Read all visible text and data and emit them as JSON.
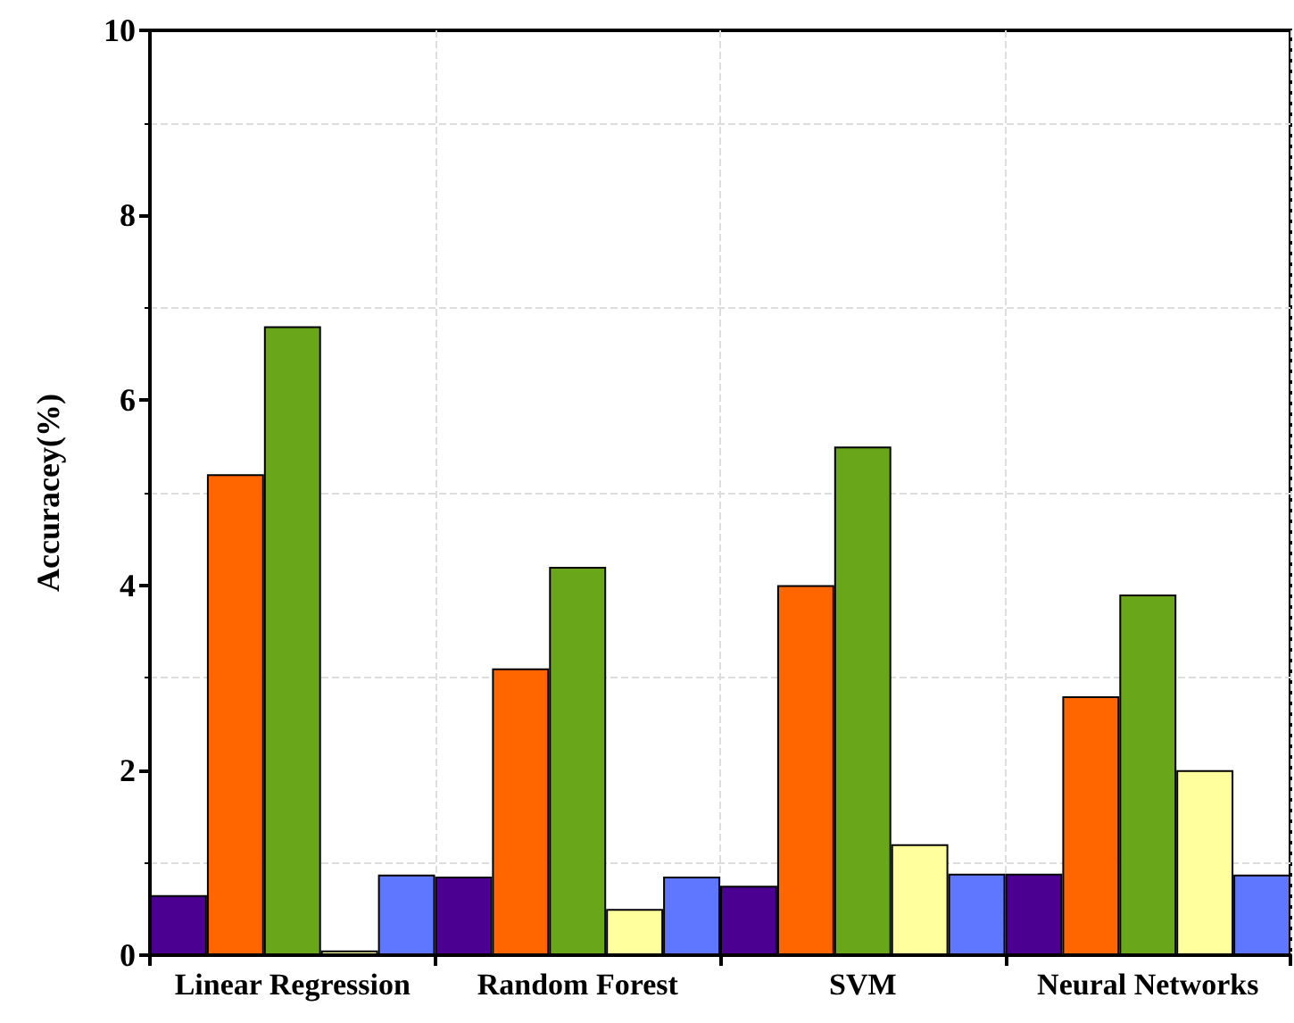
{
  "chart_data": {
    "type": "bar",
    "ylabel": "Accuracey(%)",
    "categories": [
      "Linear Regression",
      "Random Forest",
      "SVM",
      "Neural Networks"
    ],
    "series": [
      {
        "color": "#4b0092",
        "values": [
          0.65,
          0.85,
          0.75,
          0.88
        ]
      },
      {
        "color": "#ff6600",
        "values": [
          5.2,
          3.1,
          4.0,
          2.8
        ]
      },
      {
        "color": "#6aa61a",
        "values": [
          6.8,
          4.2,
          5.5,
          3.9
        ]
      },
      {
        "color": "#ffff9e",
        "values": [
          0.05,
          0.5,
          1.2,
          2.0
        ]
      },
      {
        "color": "#5f77ff",
        "values": [
          0.87,
          0.85,
          0.88,
          0.87
        ]
      }
    ],
    "ylim": [
      0,
      10
    ],
    "yticks": [
      0,
      2,
      4,
      6,
      8,
      10
    ],
    "grid": true
  }
}
